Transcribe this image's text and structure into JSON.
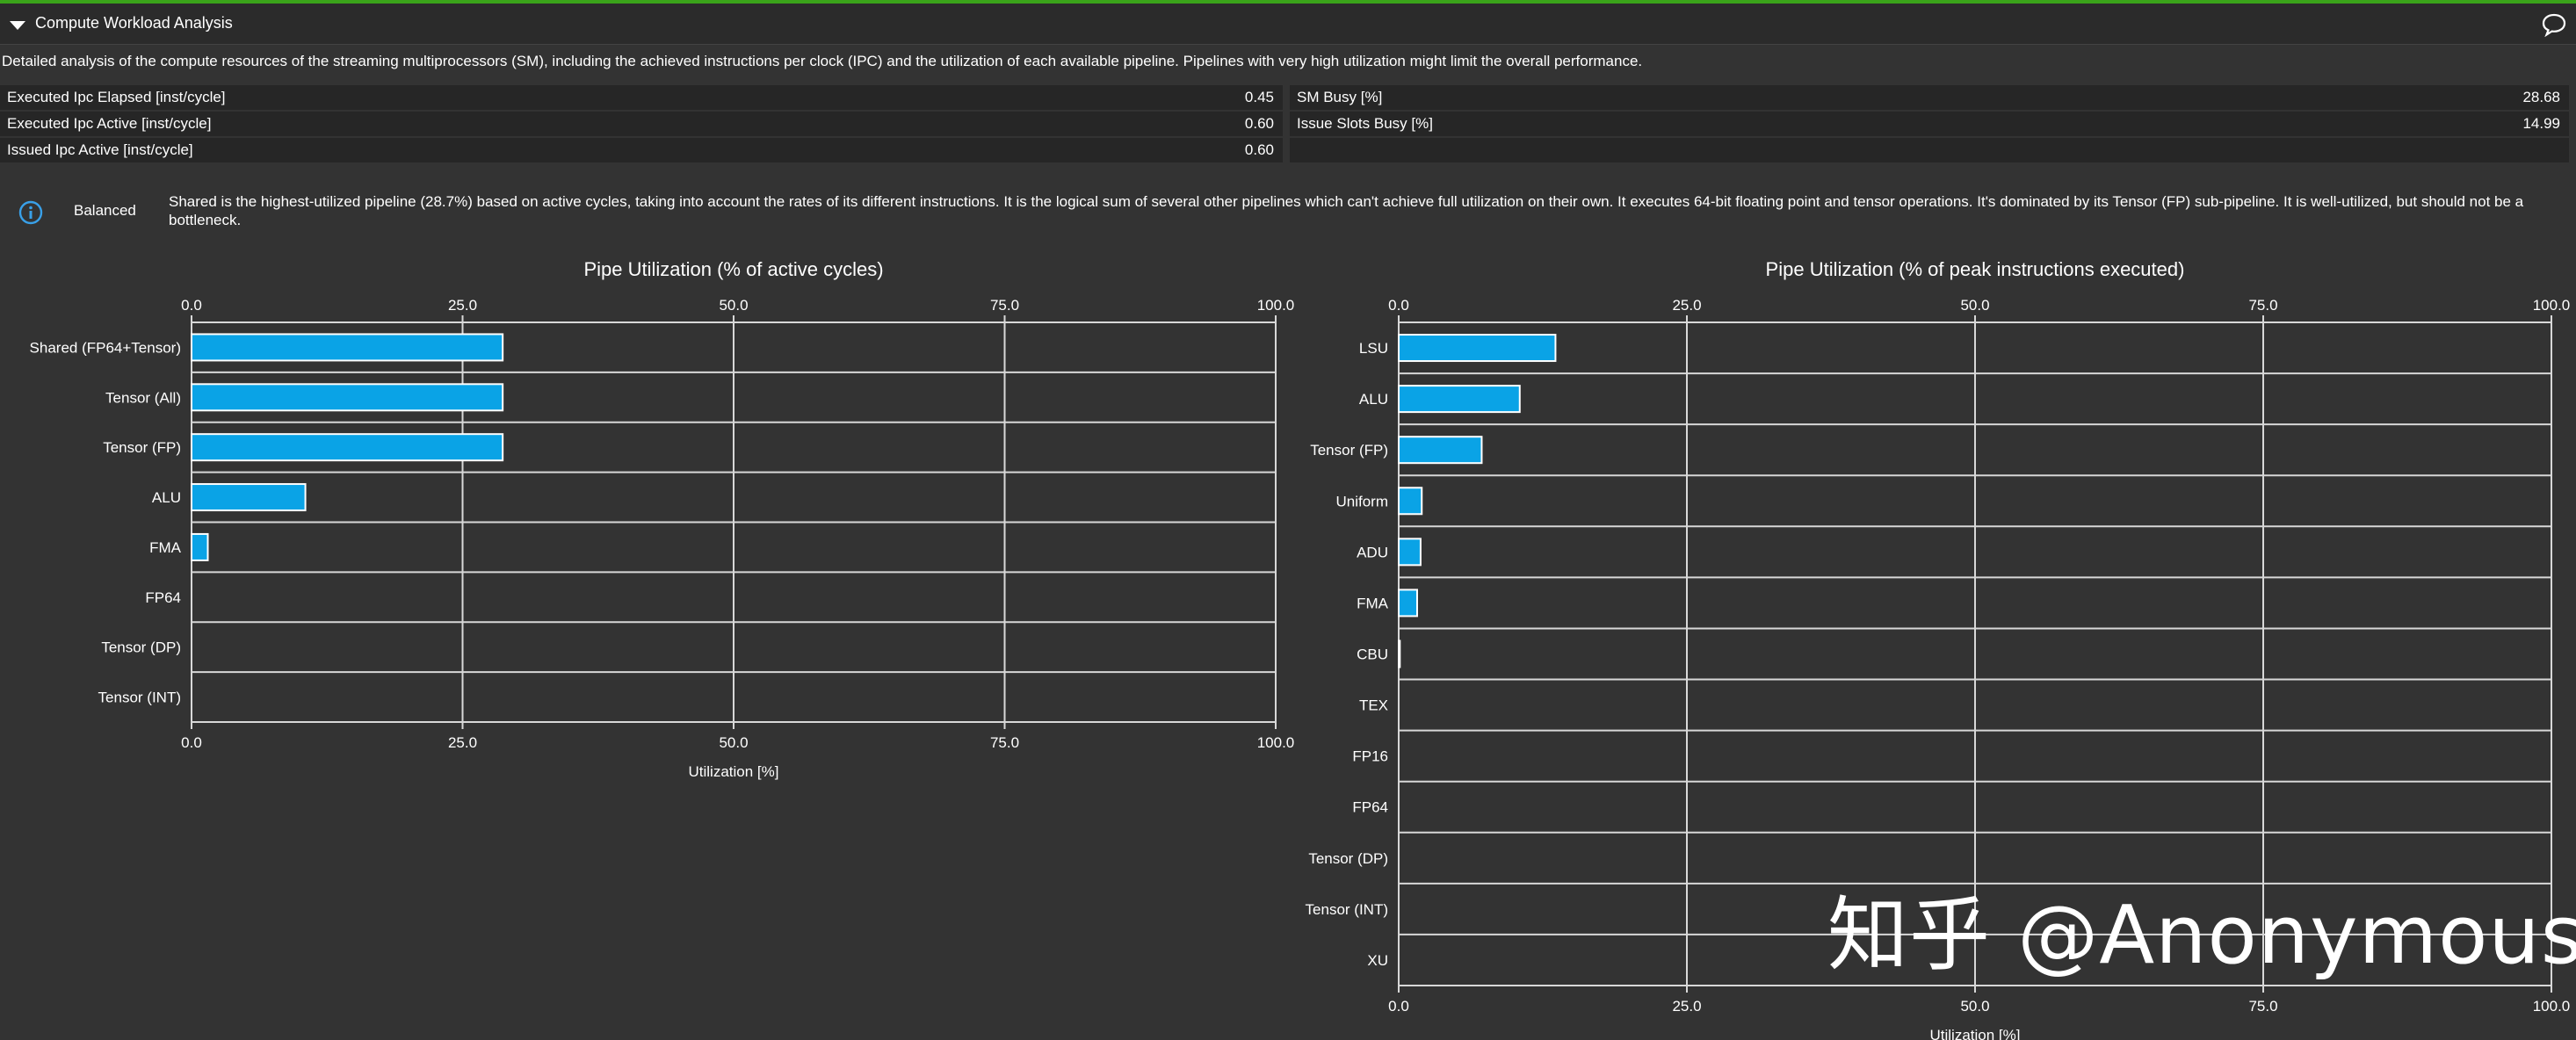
{
  "header": {
    "title": "Compute Workload Analysis",
    "chevron_icon": "chevron-down-icon",
    "comment_icon": "comment-icon"
  },
  "description": "Detailed analysis of the compute resources of the streaming multiprocessors (SM), including the achieved instructions per clock (IPC) and the utilization of each available pipeline. Pipelines with very high utilization might limit the overall performance.",
  "metrics": {
    "left": [
      {
        "label": "Executed Ipc Elapsed [inst/cycle]",
        "value": "0.45"
      },
      {
        "label": "Executed Ipc Active [inst/cycle]",
        "value": "0.60"
      },
      {
        "label": "Issued Ipc Active [inst/cycle]",
        "value": "0.60"
      }
    ],
    "right": [
      {
        "label": "SM Busy [%]",
        "value": "28.68"
      },
      {
        "label": "Issue Slots Busy [%]",
        "value": "14.99"
      }
    ]
  },
  "rule": {
    "icon": "info-icon",
    "label": "Balanced",
    "text": "Shared is the highest-utilized pipeline (28.7%) based on active cycles, taking into account the rates of its different instructions. It is the logical sum of several other pipelines which can't achieve full utilization on their own. It executes 64-bit floating point and tensor operations. It's dominated by its Tensor (FP) sub-pipeline. It is well-utilized, but should not be a bottleneck."
  },
  "colors": {
    "bar": "#0aa3e6",
    "bar_border": "#ffffff",
    "background": "#333333",
    "accent": "#3aa31a"
  },
  "watermark": "知乎 @Anonymous",
  "chart_data": [
    {
      "type": "bar",
      "orientation": "horizontal",
      "title": "Pipe Utilization (% of active cycles)",
      "xlabel": "Utilization [%]",
      "ylabel": "",
      "xlim": [
        0,
        100
      ],
      "ticks": [
        "0.0",
        "25.0",
        "50.0",
        "75.0",
        "100.0"
      ],
      "tick_values": [
        0,
        25,
        50,
        75,
        100
      ],
      "grid": true,
      "categories": [
        "Shared (FP64+Tensor)",
        "Tensor (All)",
        "Tensor (FP)",
        "ALU",
        "FMA",
        "FP64",
        "Tensor (DP)",
        "Tensor (INT)"
      ],
      "values": [
        28.7,
        28.7,
        28.7,
        10.5,
        1.5,
        0,
        0,
        0
      ]
    },
    {
      "type": "bar",
      "orientation": "horizontal",
      "title": "Pipe Utilization (% of peak instructions executed)",
      "xlabel": "Utilization [%]",
      "ylabel": "",
      "xlim": [
        0,
        100
      ],
      "ticks": [
        "0.0",
        "25.0",
        "50.0",
        "75.0",
        "100.0"
      ],
      "tick_values": [
        0,
        25,
        50,
        75,
        100
      ],
      "grid": true,
      "categories": [
        "LSU",
        "ALU",
        "Tensor (FP)",
        "Uniform",
        "ADU",
        "FMA",
        "CBU",
        "TEX",
        "FP16",
        "FP64",
        "Tensor (DP)",
        "Tensor (INT)",
        "XU"
      ],
      "values": [
        13.6,
        10.5,
        7.2,
        2.0,
        1.9,
        1.6,
        0.1,
        0,
        0,
        0,
        0,
        0,
        0
      ]
    }
  ]
}
